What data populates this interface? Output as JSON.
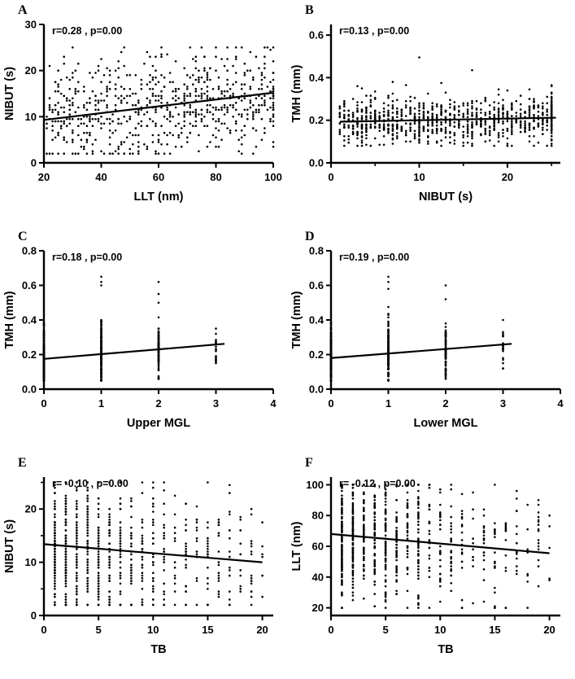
{
  "figure": {
    "background": "#ffffff",
    "point_color": "#000000",
    "axis_color": "#000000",
    "text_color": "#000000"
  },
  "chart_data": [
    {
      "type": "scatter",
      "letter": "A",
      "annotation": "r=0.28 , p=0.00",
      "r": 0.28,
      "p": 0.0,
      "xlabel": "LLT (nm)",
      "ylabel": "NIBUT (s)",
      "xlim": [
        20,
        100
      ],
      "ylim": [
        0,
        30
      ],
      "xticks": [
        20,
        40,
        60,
        80,
        100
      ],
      "xticklabels": [
        "20",
        "40",
        "60",
        "80",
        "100"
      ],
      "yticks": [
        0,
        10,
        20,
        30
      ],
      "yticklabels": [
        "0",
        "10",
        "20",
        "30"
      ],
      "regression": {
        "x": [
          20,
          100
        ],
        "y": [
          9.3,
          15.2
        ]
      },
      "scatter": {
        "kind": "trend",
        "n": 700,
        "seed": 101,
        "x": {
          "min": 21,
          "max": 100,
          "quant": 1,
          "dist": "uniform",
          "cap_p": 0.05,
          "cap": 100
        },
        "y": {
          "a": 8.1,
          "b": 0.065,
          "sd": 5.8,
          "clamp": [
            2,
            25
          ],
          "quant": 0.5
        }
      }
    },
    {
      "type": "scatter",
      "letter": "B",
      "annotation": "r=0.13 , p=0.00",
      "r": 0.13,
      "p": 0.0,
      "xlabel": "NIBUT (s)",
      "ylabel": "TMH (mm)",
      "xlim": [
        0,
        26
      ],
      "ylim": [
        0,
        0.65
      ],
      "xticks": [
        0,
        10,
        20
      ],
      "xticklabels": [
        "0",
        "10",
        "20"
      ],
      "xminor": [
        5,
        15,
        25
      ],
      "yticks": [
        0,
        0.2,
        0.4,
        0.6
      ],
      "yticklabels": [
        "0.0",
        "0.2",
        "0.4",
        "0.6"
      ],
      "regression": {
        "x": [
          1,
          25.5
        ],
        "y": [
          0.193,
          0.212
        ]
      },
      "scatter": {
        "kind": "trend",
        "n": 900,
        "seed": 202,
        "x": {
          "min": 1,
          "max": 25,
          "quant": 0.5,
          "dist": "uniform",
          "cap_p": 0.07,
          "cap": 25
        },
        "y": {
          "a": 0.195,
          "b": 0.0006,
          "sd": 0.055,
          "clamp": [
            0.08,
            0.62
          ],
          "quant": 0.005
        },
        "outlier": {
          "p": 0.005,
          "lo": 0.45,
          "hi": 0.62
        }
      }
    },
    {
      "type": "scatter",
      "letter": "C",
      "annotation": "r=0.18 , p=0.00",
      "r": 0.18,
      "p": 0.0,
      "xlabel": "Upper MGL",
      "ylabel": "TMH (mm)",
      "xlim": [
        0,
        4
      ],
      "ylim": [
        0,
        0.8
      ],
      "xticks": [
        0,
        1,
        2,
        3,
        4
      ],
      "xticklabels": [
        "0",
        "1",
        "2",
        "3",
        "4"
      ],
      "yticks": [
        0,
        0.2,
        0.4,
        0.6,
        0.8
      ],
      "yticklabels": [
        "0.0",
        "0.2",
        "0.4",
        "0.6",
        "0.8"
      ],
      "regression": {
        "x": [
          0,
          3.15
        ],
        "y": [
          0.175,
          0.262
        ]
      },
      "scatter": {
        "kind": "columns",
        "seed": 303,
        "quant": 0.005,
        "cols": [
          {
            "x": 0,
            "n": 190,
            "mean": 0.18,
            "sd": 0.085,
            "clamp": [
              0.05,
              0.5
            ]
          },
          {
            "x": 1,
            "n": 170,
            "mean": 0.21,
            "sd": 0.09,
            "clamp": [
              0.05,
              0.55
            ],
            "outliers": [
              0.6,
              0.62,
              0.65
            ]
          },
          {
            "x": 2,
            "n": 110,
            "mean": 0.22,
            "sd": 0.085,
            "clamp": [
              0.06,
              0.45
            ],
            "outliers": [
              0.5,
              0.55,
              0.62
            ]
          },
          {
            "x": 3,
            "n": 18,
            "mean": 0.21,
            "sd": 0.055,
            "clamp": [
              0.12,
              0.32
            ],
            "outliers": [
              0.35
            ]
          }
        ]
      }
    },
    {
      "type": "scatter",
      "letter": "D",
      "annotation": "r=0.19 , p=0.00",
      "r": 0.19,
      "p": 0.0,
      "xlabel": "Lower MGL",
      "ylabel": "TMH (mm)",
      "xlim": [
        0,
        4
      ],
      "ylim": [
        0,
        0.8
      ],
      "xticks": [
        0,
        1,
        2,
        3,
        4
      ],
      "xticklabels": [
        "0",
        "1",
        "2",
        "3",
        "4"
      ],
      "yticks": [
        0,
        0.2,
        0.4,
        0.6,
        0.8
      ],
      "yticklabels": [
        "0.0",
        "0.2",
        "0.4",
        "0.6",
        "0.8"
      ],
      "regression": {
        "x": [
          0,
          3.15
        ],
        "y": [
          0.18,
          0.262
        ]
      },
      "scatter": {
        "kind": "columns",
        "seed": 404,
        "quant": 0.005,
        "cols": [
          {
            "x": 0,
            "n": 200,
            "mean": 0.19,
            "sd": 0.085,
            "clamp": [
              0.05,
              0.52
            ]
          },
          {
            "x": 1,
            "n": 160,
            "mean": 0.21,
            "sd": 0.09,
            "clamp": [
              0.05,
              0.55
            ],
            "outliers": [
              0.58,
              0.62,
              0.65
            ]
          },
          {
            "x": 2,
            "n": 100,
            "mean": 0.22,
            "sd": 0.08,
            "clamp": [
              0.06,
              0.45
            ],
            "outliers": [
              0.52,
              0.6
            ]
          },
          {
            "x": 3,
            "n": 22,
            "mean": 0.22,
            "sd": 0.06,
            "clamp": [
              0.12,
              0.35
            ],
            "outliers": [
              0.4
            ]
          }
        ]
      }
    },
    {
      "type": "scatter",
      "letter": "E",
      "annotation": "r= -0.10 , p=0.00",
      "r": -0.1,
      "p": 0.0,
      "xlabel": "TB",
      "ylabel": "NIBUT (s)",
      "xlim": [
        0,
        21
      ],
      "ylim": [
        0,
        26
      ],
      "xticks": [
        0,
        5,
        10,
        15,
        20
      ],
      "xticklabels": [
        "0",
        "5",
        "10",
        "15",
        "20"
      ],
      "yticks": [
        0,
        10,
        20
      ],
      "yticklabels": [
        "0",
        "10",
        "20"
      ],
      "yminor": [
        5,
        15,
        25
      ],
      "regression": {
        "x": [
          0,
          20
        ],
        "y": [
          13.4,
          10.0
        ]
      },
      "scatter": {
        "kind": "trend",
        "n": 800,
        "seed": 505,
        "x": {
          "min": 1,
          "max": 20,
          "quant": 1,
          "dist": "exp",
          "rate": 5.0,
          "mix_uniform": 0.22
        },
        "y": {
          "a": 12.8,
          "b": -0.14,
          "sd": 6.2,
          "clamp": [
            2,
            25
          ],
          "quant": 0.5
        }
      }
    },
    {
      "type": "scatter",
      "letter": "F",
      "annotation": "r= -0.12 , p=0.00",
      "r": -0.12,
      "p": 0.0,
      "xlabel": "TB",
      "ylabel": "LLT (nm)",
      "xlim": [
        0,
        21
      ],
      "ylim": [
        15,
        105
      ],
      "xticks": [
        0,
        5,
        10,
        15,
        20
      ],
      "xticklabels": [
        "0",
        "5",
        "10",
        "15",
        "20"
      ],
      "yticks": [
        20,
        40,
        60,
        80,
        100
      ],
      "yticklabels": [
        "20",
        "40",
        "60",
        "80",
        "100"
      ],
      "regression": {
        "x": [
          0,
          20
        ],
        "y": [
          68,
          55.5
        ]
      },
      "scatter": {
        "kind": "trend",
        "n": 800,
        "seed": 606,
        "x": {
          "min": 1,
          "max": 20,
          "quant": 1,
          "dist": "exp",
          "rate": 5.0,
          "mix_uniform": 0.22
        },
        "y": {
          "a": 68,
          "b": -0.55,
          "sd": 21,
          "clamp": [
            20,
            100
          ],
          "quant": 1
        }
      }
    }
  ]
}
